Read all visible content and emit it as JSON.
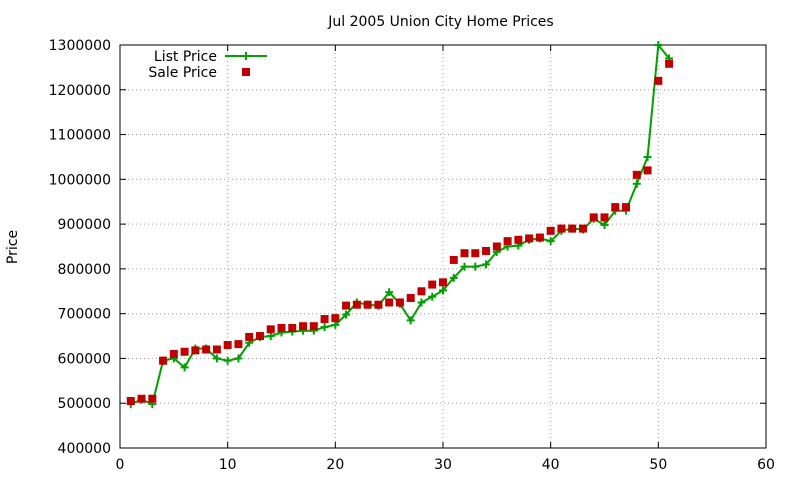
{
  "chart_data": {
    "type": "line",
    "title": "Jul 2005 Union City Home Prices",
    "xlabel": "",
    "ylabel": "Price",
    "xlim": [
      0,
      60
    ],
    "ylim": [
      400000,
      1300000
    ],
    "x_ticks": [
      "0",
      "10",
      "20",
      "30",
      "40",
      "50",
      "60"
    ],
    "y_ticks": [
      "400000",
      "500000",
      "600000",
      "700000",
      "800000",
      "900000",
      "1000000",
      "1100000",
      "1200000",
      "1300000"
    ],
    "grid": true,
    "legend_position": "top-left",
    "series": [
      {
        "name": "List Price",
        "style": "line-with-plus-markers",
        "color": "#00a000",
        "x": [
          1,
          2,
          3,
          4,
          5,
          6,
          7,
          8,
          9,
          10,
          11,
          12,
          13,
          14,
          15,
          16,
          17,
          18,
          19,
          20,
          21,
          22,
          23,
          24,
          25,
          26,
          27,
          28,
          29,
          30,
          31,
          32,
          33,
          34,
          35,
          36,
          37,
          38,
          39,
          40,
          41,
          42,
          43,
          44,
          45,
          46,
          47,
          48,
          49,
          50,
          51
        ],
        "values": [
          498000,
          508000,
          498000,
          595000,
          600000,
          580000,
          622000,
          622000,
          600000,
          595000,
          600000,
          635000,
          648000,
          650000,
          658000,
          660000,
          662000,
          662000,
          670000,
          675000,
          698000,
          725000,
          720000,
          718000,
          748000,
          722000,
          685000,
          725000,
          738000,
          752000,
          780000,
          805000,
          805000,
          810000,
          838000,
          850000,
          852000,
          865000,
          868000,
          862000,
          885000,
          890000,
          888000,
          912000,
          898000,
          930000,
          930000,
          990000,
          1050000,
          1300000,
          1270000
        ]
      },
      {
        "name": "Sale Price",
        "style": "square-markers",
        "color": "#c00000",
        "x": [
          1,
          2,
          3,
          4,
          5,
          6,
          7,
          8,
          9,
          10,
          11,
          12,
          13,
          14,
          15,
          16,
          17,
          18,
          19,
          20,
          21,
          22,
          23,
          24,
          25,
          26,
          27,
          28,
          29,
          30,
          31,
          32,
          33,
          34,
          35,
          36,
          37,
          38,
          39,
          40,
          41,
          42,
          43,
          44,
          45,
          46,
          47,
          48,
          49,
          50,
          51
        ],
        "values": [
          505000,
          510000,
          510000,
          595000,
          610000,
          615000,
          618000,
          620000,
          620000,
          630000,
          632000,
          648000,
          650000,
          665000,
          668000,
          668000,
          672000,
          672000,
          688000,
          690000,
          718000,
          720000,
          720000,
          720000,
          725000,
          725000,
          735000,
          750000,
          765000,
          770000,
          820000,
          835000,
          835000,
          840000,
          850000,
          862000,
          865000,
          868000,
          870000,
          885000,
          890000,
          890000,
          890000,
          915000,
          915000,
          938000,
          938000,
          1010000,
          1020000,
          1220000,
          1258000
        ]
      }
    ]
  }
}
